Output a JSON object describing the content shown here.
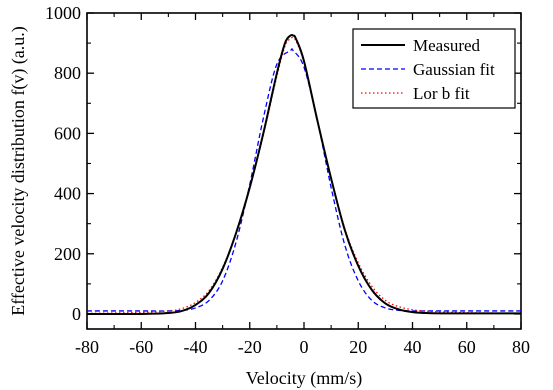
{
  "chart_data": {
    "type": "line",
    "xlabel": "Velocity (mm/s)",
    "ylabel": "Effective velocity distribution f(v) (a.u.)",
    "xlim": [
      -80,
      80
    ],
    "ylim": [
      -50,
      1000
    ],
    "xticks": [
      -80,
      -60,
      -40,
      -20,
      0,
      20,
      40,
      60,
      80
    ],
    "yticks": [
      0,
      200,
      400,
      600,
      800,
      1000
    ],
    "grid": false,
    "legend_position": "top-right",
    "series": [
      {
        "name": "Measured",
        "color": "#000000",
        "style": "solid",
        "x": [
          -80,
          -60,
          -50,
          -45,
          -40,
          -35,
          -30,
          -25,
          -20,
          -15,
          -10,
          -7,
          -5,
          -4,
          -3,
          0,
          5,
          10,
          15,
          20,
          25,
          30,
          35,
          40,
          45,
          50,
          60,
          80
        ],
        "y": [
          0,
          0,
          3,
          10,
          30,
          70,
          150,
          270,
          420,
          600,
          800,
          900,
          925,
          925,
          915,
          840,
          640,
          450,
          280,
          160,
          80,
          35,
          15,
          6,
          3,
          2,
          2,
          2
        ]
      },
      {
        "name": "Gaussian fit",
        "color": "#0000ff",
        "style": "dashed",
        "x": [
          -80,
          -60,
          -50,
          -45,
          -40,
          -35,
          -30,
          -25,
          -20,
          -15,
          -10,
          -5,
          -4,
          0,
          5,
          10,
          15,
          20,
          25,
          30,
          35,
          40,
          45,
          50,
          60,
          80
        ],
        "y": [
          10,
          10,
          10,
          12,
          20,
          45,
          110,
          240,
          430,
          650,
          830,
          875,
          875,
          820,
          640,
          420,
          230,
          110,
          45,
          20,
          12,
          10,
          10,
          10,
          10,
          10
        ]
      },
      {
        "name": "Lor b fit",
        "color": "#ff0000",
        "style": "dotted",
        "x": [
          -80,
          -60,
          -50,
          -45,
          -40,
          -35,
          -30,
          -25,
          -20,
          -15,
          -10,
          -7,
          -5,
          -4,
          -3,
          0,
          5,
          10,
          15,
          20,
          25,
          30,
          35,
          40,
          45,
          50,
          60,
          80
        ],
        "y": [
          2,
          5,
          10,
          18,
          38,
          78,
          155,
          270,
          420,
          595,
          790,
          890,
          915,
          918,
          908,
          835,
          640,
          452,
          285,
          170,
          92,
          45,
          24,
          14,
          9,
          7,
          4,
          2
        ]
      }
    ]
  }
}
